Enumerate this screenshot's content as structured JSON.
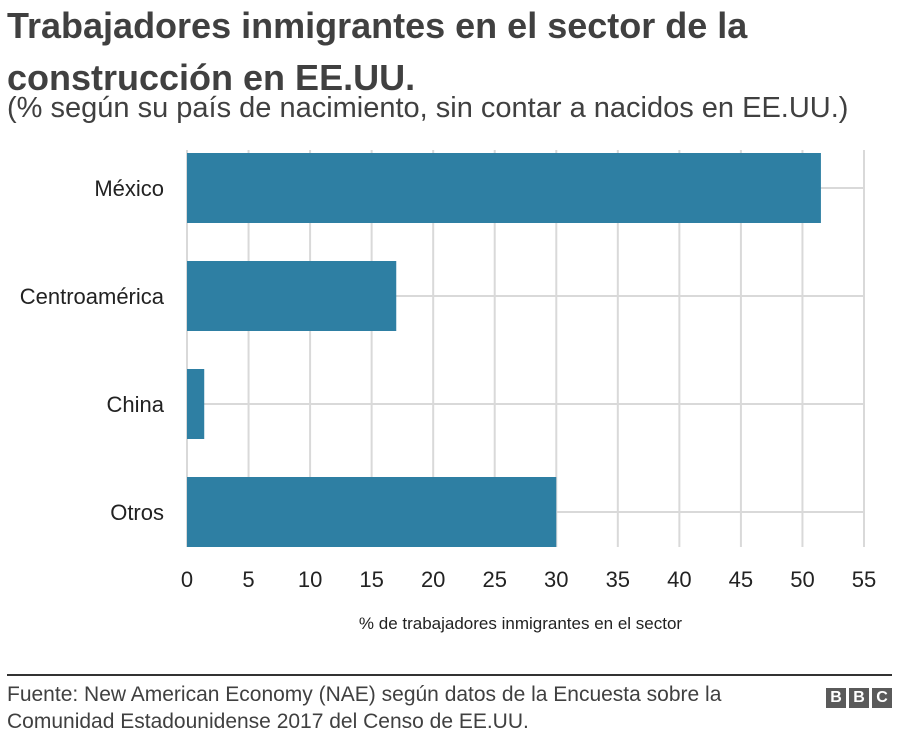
{
  "header": {
    "title": "Trabajadores inmigrantes en el sector de la construcción en EE.UU.",
    "subtitle": "(% según su país de nacimiento, sin contar a nacidos en EE.UU.)"
  },
  "chart_data": {
    "type": "bar",
    "orientation": "horizontal",
    "categories": [
      "México",
      "Centroamérica",
      "China",
      "Otros"
    ],
    "values": [
      51.5,
      17,
      1.4,
      30
    ],
    "xlabel": "% de trabajadores inmigrantes en el sector",
    "ylabel": "",
    "xlim": [
      0,
      55
    ],
    "xticks": [
      0,
      5,
      10,
      15,
      20,
      25,
      30,
      35,
      40,
      45,
      50,
      55
    ],
    "grid": true,
    "legend": "none",
    "bar_color": "#2e7fa3",
    "grid_color": "#d9d9d9"
  },
  "footer": {
    "source": "Fuente: New American Economy (NAE) según datos de la Encuesta sobre la Comunidad Estadounidense 2017 del Censo de EE.UU.",
    "logo_letters": [
      "B",
      "B",
      "C"
    ]
  }
}
